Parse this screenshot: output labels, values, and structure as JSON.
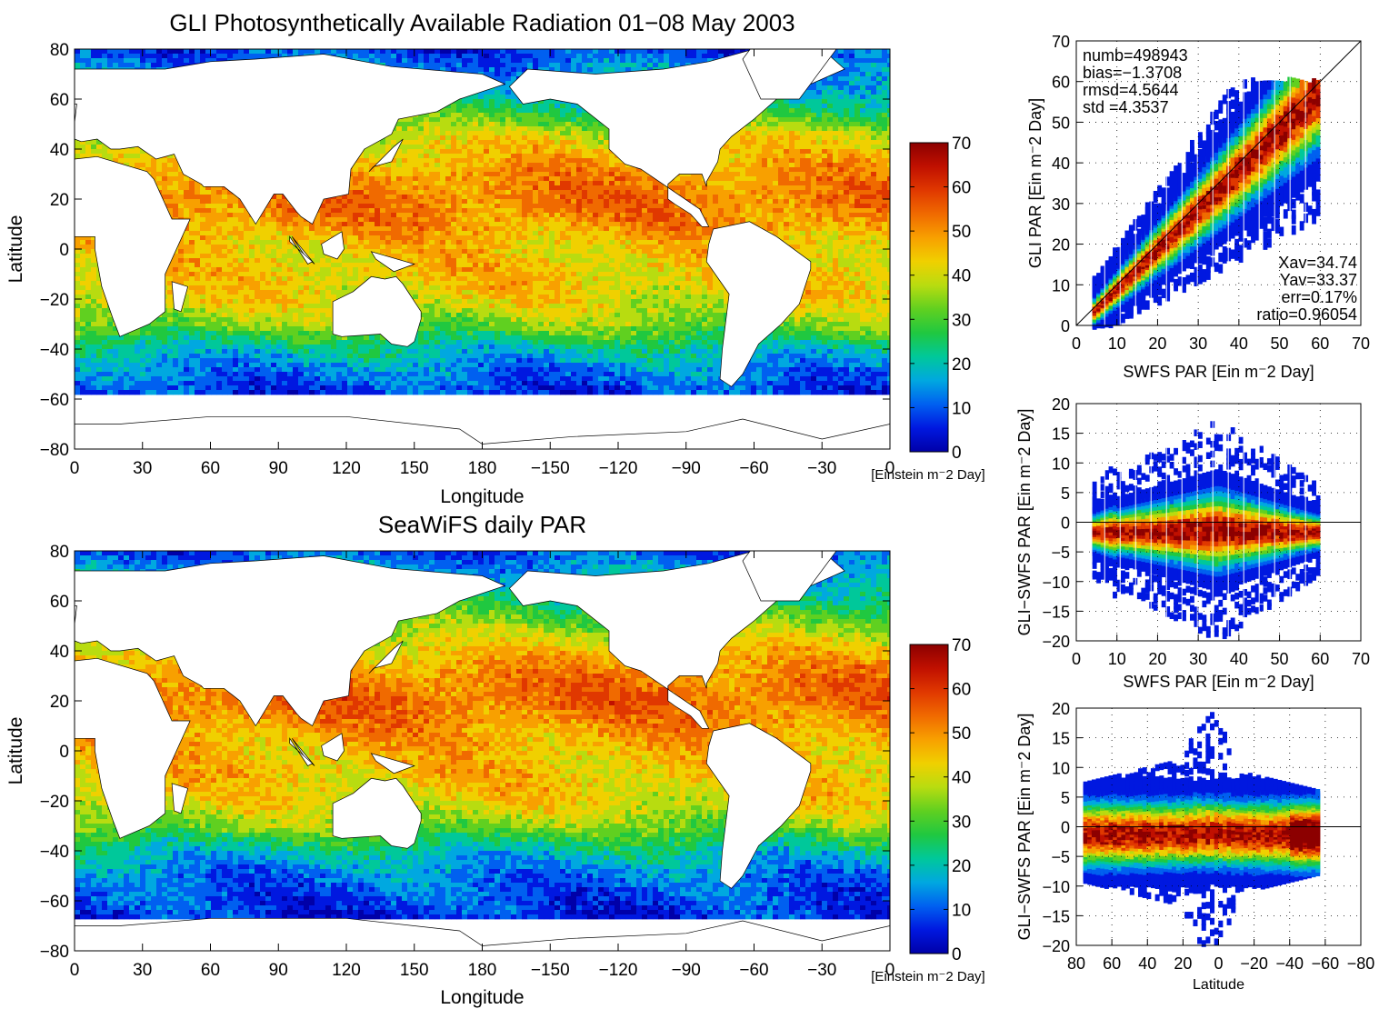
{
  "colors": {
    "colormap": [
      "#0000a8",
      "#0018e0",
      "#0060f0",
      "#00a8e0",
      "#00c89a",
      "#20c840",
      "#60d020",
      "#b8dc10",
      "#f0d000",
      "#f8a000",
      "#f06a00",
      "#e03800",
      "#c01000",
      "#8c0000"
    ],
    "land": "#ffffff",
    "axis": "#000000"
  },
  "chart_data": [
    {
      "id": "map-gli",
      "type": "heatmap",
      "title": "GLI Photosynthetically Available Radiation 01−08 May 2003",
      "xlabel": "Longitude",
      "ylabel": "Latitude",
      "x_ticks": [
        "0",
        "30",
        "60",
        "90",
        "120",
        "150",
        "180",
        "−150",
        "−120",
        "−90",
        "−60",
        "−30",
        "0"
      ],
      "y_ticks": [
        "80",
        "60",
        "40",
        "20",
        "0",
        "−20",
        "−40",
        "−60",
        "−80"
      ],
      "ylim": [
        -80,
        80
      ],
      "colorbar": {
        "ticks": [
          "0",
          "10",
          "20",
          "30",
          "40",
          "50",
          "60",
          "70"
        ],
        "range": [
          0,
          70
        ],
        "unit": "[Einstein m⁻2 Day]"
      },
      "ocean_cutoff_lat": -57,
      "zonal_profile_lat": [
        80,
        60,
        45,
        30,
        20,
        10,
        0,
        -10,
        -20,
        -30,
        -40,
        -50,
        -57
      ],
      "zonal_profile_par": [
        8,
        22,
        40,
        50,
        53,
        50,
        44,
        44,
        42,
        34,
        20,
        12,
        8
      ]
    },
    {
      "id": "map-seawifs",
      "type": "heatmap",
      "title": "SeaWiFS daily PAR",
      "xlabel": "Longitude",
      "ylabel": "Latitude",
      "x_ticks": [
        "0",
        "30",
        "60",
        "90",
        "120",
        "150",
        "180",
        "−150",
        "−120",
        "−90",
        "−60",
        "−30",
        "0"
      ],
      "y_ticks": [
        "80",
        "60",
        "40",
        "20",
        "0",
        "−20",
        "−40",
        "−60",
        "−80"
      ],
      "ylim": [
        -80,
        80
      ],
      "colorbar": {
        "ticks": [
          "0",
          "10",
          "20",
          "30",
          "40",
          "50",
          "60",
          "70"
        ],
        "range": [
          0,
          70
        ],
        "unit": "[Einstein m⁻2 Day]"
      },
      "ocean_cutoff_lat": -67,
      "zonal_profile_lat": [
        80,
        60,
        45,
        30,
        20,
        10,
        0,
        -10,
        -20,
        -30,
        -40,
        -50,
        -67
      ],
      "zonal_profile_par": [
        9,
        26,
        40,
        52,
        54,
        50,
        46,
        45,
        42,
        34,
        20,
        12,
        6
      ]
    },
    {
      "id": "scatter-gli-vs-swfs",
      "type": "scatter",
      "xlabel": "SWFS PAR [Ein m⁻2 Day]",
      "ylabel": "GLI PAR [Ein m⁻2 Day]",
      "xlim": [
        0,
        70
      ],
      "ylim": [
        0,
        70
      ],
      "x_ticks": [
        "0",
        "10",
        "20",
        "30",
        "40",
        "50",
        "60",
        "70"
      ],
      "y_ticks": [
        "0",
        "10",
        "20",
        "30",
        "40",
        "50",
        "60",
        "70"
      ],
      "grid": true,
      "stats_top": [
        "numb=498943",
        "bias=−1.3708",
        "rmsd=4.5644",
        "std =4.3537"
      ],
      "stats_bottom": [
        "Xav=34.74",
        "Yav=33.37",
        "err=0.17%",
        "ratio=0.96054"
      ],
      "reference_line": "1:1",
      "x_data_range": [
        4,
        60
      ]
    },
    {
      "id": "scatter-diff-vs-swfs",
      "type": "scatter",
      "xlabel": "SWFS PAR [Ein m⁻2 Day]",
      "ylabel": "GLI−SWFS PAR [Ein m⁻2 Day]",
      "xlim": [
        0,
        70
      ],
      "ylim": [
        -20,
        20
      ],
      "x_ticks": [
        "0",
        "10",
        "20",
        "30",
        "40",
        "50",
        "60",
        "70"
      ],
      "y_ticks": [
        "20",
        "15",
        "10",
        "5",
        "0",
        "−5",
        "−10",
        "−15",
        "−20"
      ],
      "grid": true,
      "reference_line": "y=0",
      "x_data_range": [
        4,
        60
      ]
    },
    {
      "id": "scatter-diff-vs-lat",
      "type": "scatter",
      "xlabel": "Latitude",
      "ylabel": "GLI−SWFS PAR [Ein m⁻2 Day]",
      "xlim": [
        80,
        -80
      ],
      "ylim": [
        -20,
        20
      ],
      "x_ticks": [
        "80",
        "60",
        "40",
        "20",
        "0",
        "−20",
        "−40",
        "−60",
        "−80"
      ],
      "y_ticks": [
        "20",
        "15",
        "10",
        "5",
        "0",
        "−5",
        "−10",
        "−15",
        "−20"
      ],
      "grid": true,
      "reference_line": "y=0",
      "x_data_range": [
        76,
        -57
      ]
    }
  ]
}
